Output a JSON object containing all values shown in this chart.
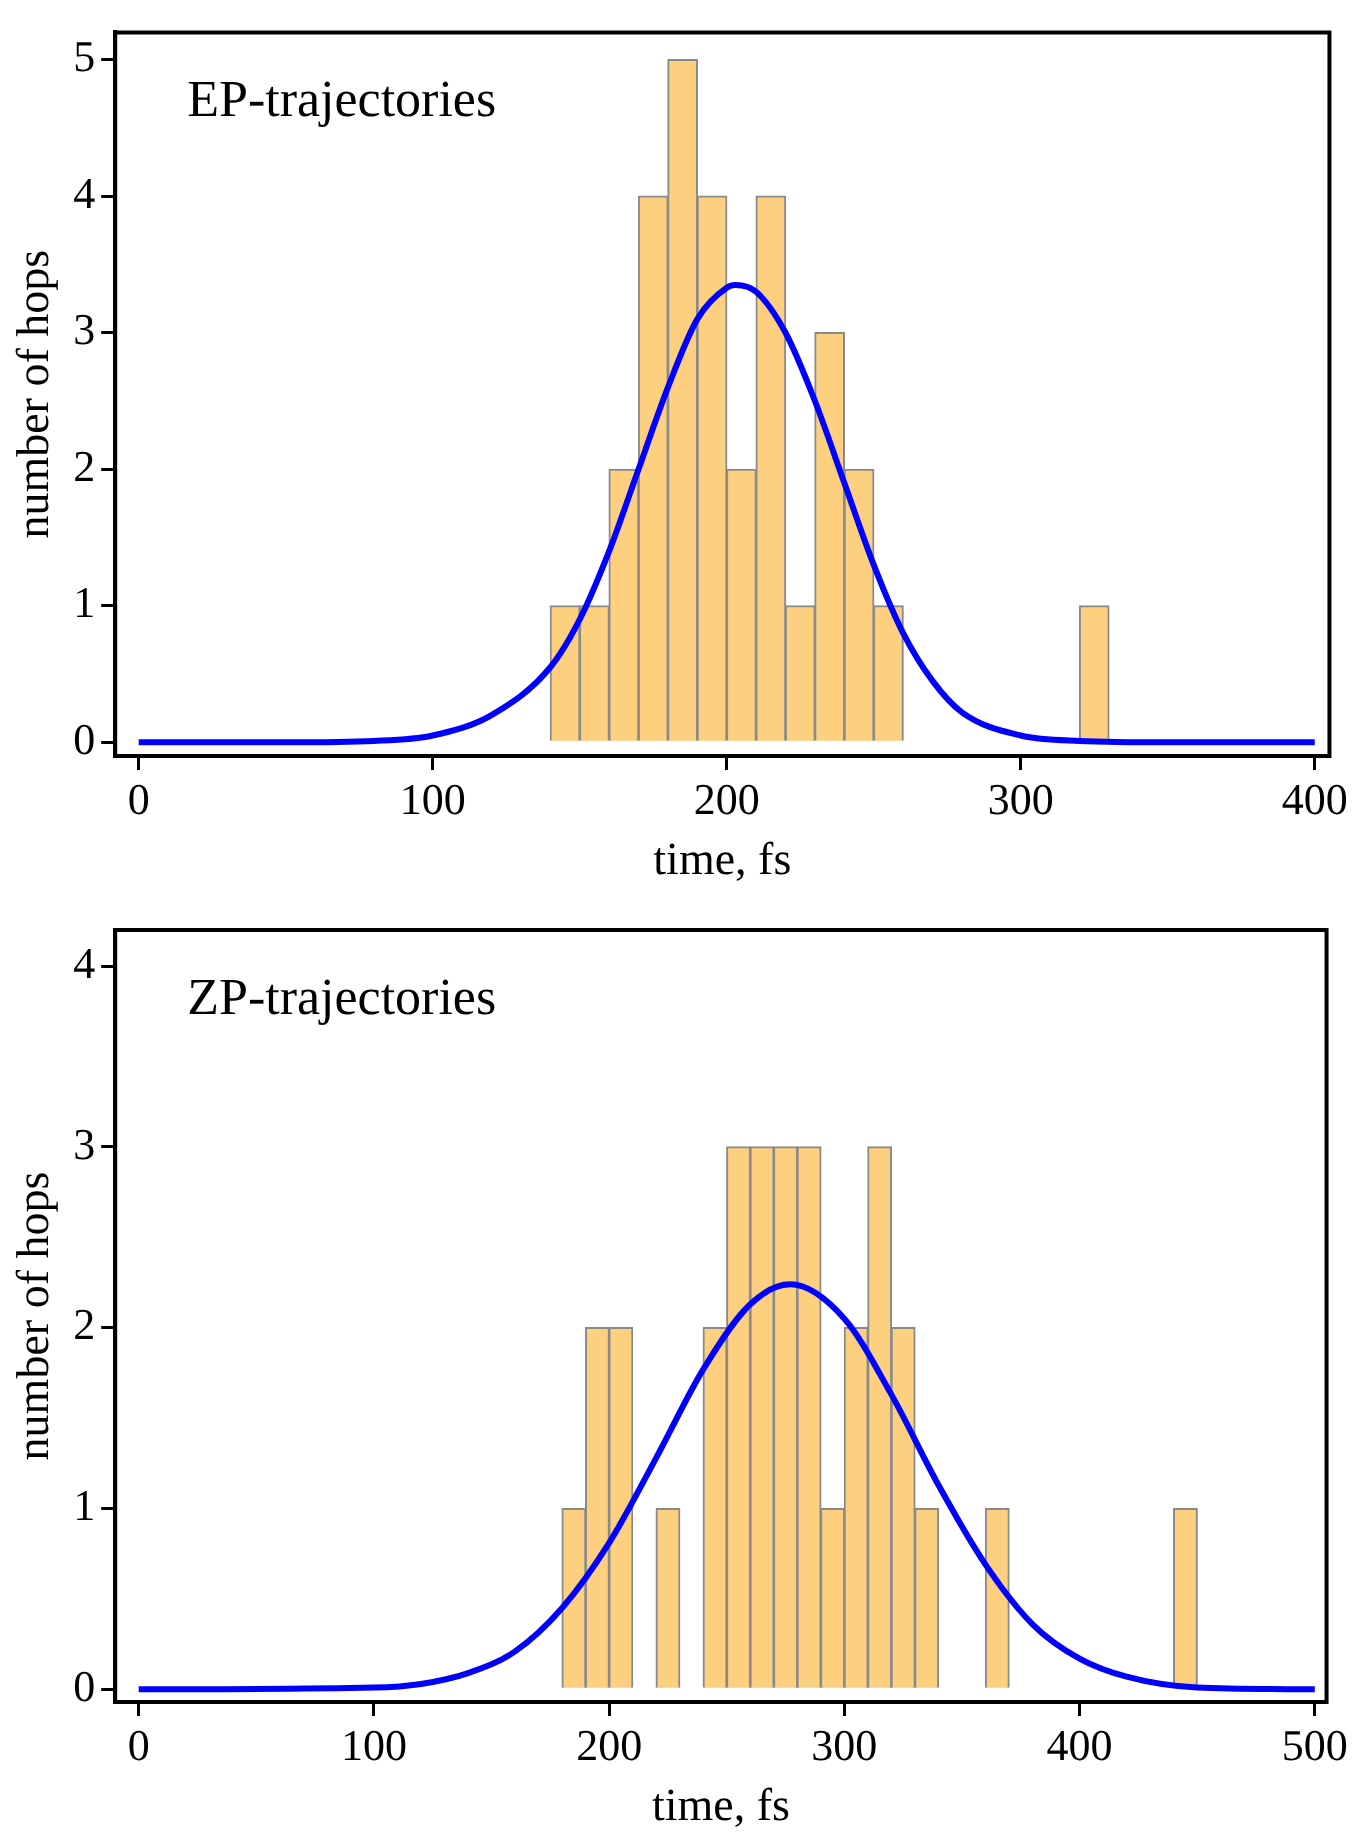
{
  "chart_data": [
    {
      "type": "histogram",
      "xlabel": "time, fs",
      "ylabel": "number of hops",
      "annotations": [
        "EP-trajectories"
      ],
      "xlim": [
        -8,
        405
      ],
      "xticks": [
        0,
        100,
        200,
        300,
        400
      ],
      "ylim": [
        -0.1,
        5.2
      ],
      "yticks": [
        0,
        1,
        2,
        3,
        4,
        5
      ],
      "grid": false,
      "legend": false,
      "series": [
        {
          "color": "#fdd080",
          "bins": [
            140,
            150,
            160,
            170,
            180,
            190,
            200,
            210,
            220,
            230,
            240,
            250,
            260,
            270,
            280,
            290,
            300,
            310,
            320,
            330
          ],
          "values": [
            1,
            1,
            2,
            4,
            5,
            4,
            2,
            4,
            1,
            3,
            2,
            1,
            0,
            0,
            0,
            0,
            0,
            0,
            1
          ]
        },
        {
          "type": "line",
          "color": "#0000ff",
          "x": [
            0,
            50,
            80,
            100,
            120,
            140,
            150,
            160,
            170,
            180,
            190,
            200,
            203,
            210,
            220,
            230,
            240,
            250,
            260,
            270,
            280,
            300,
            320,
            350,
            400
          ],
          "values": [
            0,
            0,
            0.01,
            0.05,
            0.2,
            0.55,
            0.9,
            1.4,
            2.0,
            2.6,
            3.1,
            3.33,
            3.35,
            3.3,
            3.0,
            2.5,
            1.9,
            1.3,
            0.8,
            0.45,
            0.22,
            0.05,
            0.01,
            0,
            0
          ]
        }
      ]
    },
    {
      "type": "histogram",
      "xlabel": "time, fs",
      "ylabel": "number of hops",
      "annotations": [
        "ZP-trajectories"
      ],
      "xlim": [
        -10,
        505
      ],
      "xticks": [
        0,
        100,
        200,
        300,
        400,
        500
      ],
      "ylim": [
        -0.07,
        4.2
      ],
      "yticks": [
        0,
        1,
        2,
        3,
        4
      ],
      "grid": false,
      "legend": false,
      "series": [
        {
          "color": "#fdd080",
          "bins": [
            180,
            190,
            200,
            210,
            220,
            230,
            240,
            250,
            260,
            270,
            280,
            290,
            300,
            310,
            320,
            330,
            340,
            350,
            360,
            370,
            380,
            390,
            400,
            410,
            420,
            430,
            440,
            450
          ],
          "values": [
            1,
            2,
            2,
            0,
            1,
            0,
            2,
            3,
            3,
            3,
            3,
            1,
            2,
            3,
            2,
            1,
            0,
            0,
            1,
            0,
            0,
            0,
            0,
            0,
            0,
            0,
            1
          ]
        },
        {
          "type": "line",
          "color": "#0000ff",
          "x": [
            0,
            100,
            120,
            140,
            160,
            180,
            200,
            220,
            240,
            260,
            277,
            300,
            320,
            340,
            360,
            380,
            400,
            420,
            450,
            500
          ],
          "values": [
            0,
            0.01,
            0.03,
            0.09,
            0.21,
            0.45,
            0.81,
            1.28,
            1.77,
            2.13,
            2.24,
            2.05,
            1.63,
            1.13,
            0.69,
            0.36,
            0.17,
            0.07,
            0.01,
            0
          ]
        }
      ]
    }
  ]
}
